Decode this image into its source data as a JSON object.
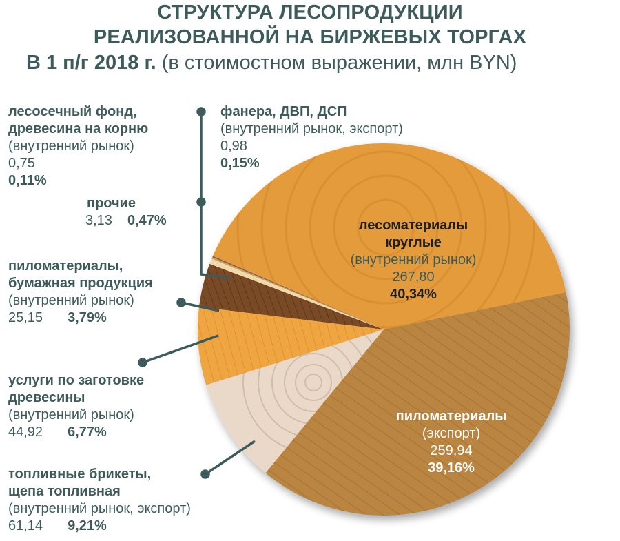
{
  "title": {
    "line1": "СТРУКТУРА ЛЕСОПРОДУКЦИИ",
    "line2": "РЕАЛИЗОВАННОЙ НА БИРЖЕВЫХ ТОРГАХ",
    "line3_bold": "В 1 п/г 2018 г.",
    "line3_rest": " (в стоимостном выражении, млн BYN)"
  },
  "labels": {
    "logging_fund": {
      "name1": "лесосечный фонд,",
      "name2": "древесина на корню",
      "market": "(внутренний рынок)",
      "value": "0,75",
      "percent": "0,11%"
    },
    "plywood": {
      "name": "фанера, ДВП, ДСП",
      "market": "(внутренний рынок, экспорт)",
      "value": "0,98",
      "percent": "0,15%"
    },
    "other": {
      "name": "прочие",
      "value": "3,13",
      "percent": "0,47%"
    },
    "lumber_paper": {
      "name1": "пиломатериалы,",
      "name2": "бумажная продукция",
      "market": "(внутренний рынок)",
      "value": "25,15",
      "percent": "3,79%"
    },
    "harvesting": {
      "name1": "услуги по заготовке",
      "name2": "древесины",
      "market": "(внутренний рынок)",
      "value": "44,92",
      "percent": "6,77%"
    },
    "fuel": {
      "name1": "топливные брикеты,",
      "name2": "щепа топливная",
      "market": "(внутренний рынок, экспорт)",
      "value": "61,14",
      "percent": "9,21%"
    },
    "roundwood": {
      "name1": "лесоматериалы",
      "name2": "круглые",
      "market": "(внутренний рынок)",
      "value": "267,80",
      "percent": "40,34%"
    },
    "lumber_export": {
      "name": "пиломатериалы",
      "market": "(экспорт)",
      "value": "259,94",
      "percent": "39,16%"
    }
  },
  "chart_data": {
    "type": "pie",
    "title": "СТРУКТУРА ЛЕСОПРОДУКЦИИ РЕАЛИЗОВАННОЙ НА БИРЖЕВЫХ ТОРГАХ В 1 п/г 2018 г. (в стоимостном выражении, млн BYN)",
    "slices": [
      {
        "label": "лесоматериалы круглые (внутренний рынок)",
        "value": 267.8,
        "percent": 40.34,
        "color": "#e39b3a"
      },
      {
        "label": "пиломатериалы (экспорт)",
        "value": 259.94,
        "percent": 39.16,
        "color": "#b98541"
      },
      {
        "label": "топливные брикеты, щепа топливная (внутренний рынок, экспорт)",
        "value": 61.14,
        "percent": 9.21,
        "color": "#ead8c8"
      },
      {
        "label": "услуги по заготовке древесины (внутренний рынок)",
        "value": 44.92,
        "percent": 6.77,
        "color": "#efa541"
      },
      {
        "label": "пиломатериалы, бумажная продукция (внутренний рынок)",
        "value": 25.15,
        "percent": 3.79,
        "color": "#7a4a25"
      },
      {
        "label": "прочие",
        "value": 3.13,
        "percent": 0.47,
        "color": "#f2d9a8"
      },
      {
        "label": "фанера, ДВП, ДСП (внутренний рынок, экспорт)",
        "value": 0.98,
        "percent": 0.15,
        "color": "#c9a070"
      },
      {
        "label": "лесосечный фонд, древесина на корню (внутренний рынок)",
        "value": 0.75,
        "percent": 0.11,
        "color": "#8a6040"
      }
    ]
  }
}
